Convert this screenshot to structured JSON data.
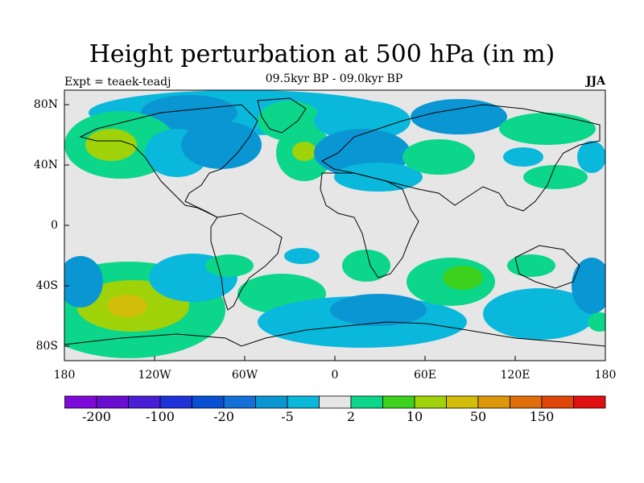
{
  "header": {
    "title": "Height perturbation at 500 hPa (in m)",
    "subtitle": "09.5kyr BP - 09.0kyr BP",
    "expt": "Expt = teaek-teadj",
    "season": "JJA"
  },
  "axes": {
    "lat_labels": [
      "80N",
      "40N",
      "0",
      "40S",
      "80S"
    ],
    "lon_labels": [
      "180",
      "120W",
      "60W",
      "0",
      "60E",
      "120E",
      "180"
    ]
  },
  "colorbar": {
    "colors": [
      "#7d0ad9",
      "#6a0dd0",
      "#4a1ed6",
      "#1e32d8",
      "#0a50d2",
      "#1270d8",
      "#0a96d2",
      "#0ab8dc",
      "#e6e6e6",
      "#0cd68a",
      "#3cd21e",
      "#a0d20a",
      "#d2be0a",
      "#dc960a",
      "#e06e0a",
      "#e0460a",
      "#e01010"
    ],
    "labels": [
      "-200",
      "-100",
      "-20",
      "-5",
      "2",
      "10",
      "50",
      "150"
    ]
  },
  "map_colors": {
    "background": "#e6e6e6",
    "green": "#0cd68a",
    "brightgreen": "#3cd21e",
    "lime": "#a0d20a",
    "gold": "#d2be0a",
    "cyan": "#0ab8dc",
    "blue1": "#0a96d2",
    "blue2": "#1270d8"
  }
}
